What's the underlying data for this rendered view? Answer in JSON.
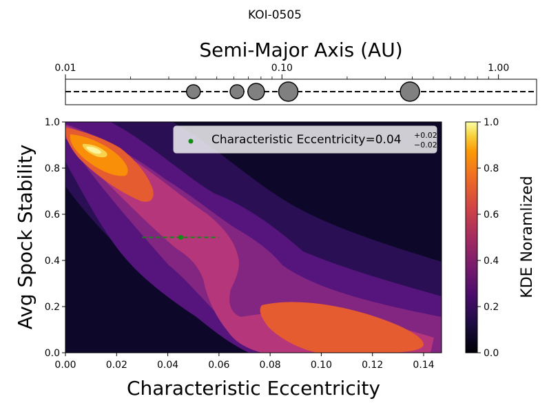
{
  "figure_title": "KOI-0505",
  "colors": {
    "background": "#0d0829",
    "legend_point": "#138a13",
    "planet_fill": "#808080",
    "levels": [
      "#0d0829",
      "#2b0f54",
      "#56147d",
      "#822681",
      "#b5367a",
      "#e55c30",
      "#f98e09",
      "#fbd24e",
      "#fcf5a0"
    ]
  },
  "chart_data": [
    {
      "type": "scatter",
      "role": "planet-axis",
      "title": "Semi-Major Axis (AU)",
      "xscale": "log",
      "xlim": [
        0.01,
        1.5
      ],
      "xticks": [
        0.01,
        0.1,
        1.0
      ],
      "xtick_labels": [
        "0.01",
        "0.10",
        "1.00"
      ],
      "planets": [
        {
          "a": 0.039,
          "size": "small"
        },
        {
          "a": 0.062,
          "size": "small"
        },
        {
          "a": 0.076,
          "size": "medium"
        },
        {
          "a": 0.107,
          "size": "large"
        },
        {
          "a": 0.39,
          "size": "large"
        }
      ]
    },
    {
      "type": "heatmap",
      "subtype": "filled-contour",
      "xlabel": "Characteristic Eccentricity",
      "ylabel": "Avg Spock Stability",
      "xlim": [
        0.0,
        0.147
      ],
      "ylim": [
        0.0,
        1.0
      ],
      "xticks": [
        "0.00",
        "0.02",
        "0.04",
        "0.06",
        "0.08",
        "0.10",
        "0.12",
        "0.14"
      ],
      "yticks": [
        "0.0",
        "0.2",
        "0.4",
        "0.6",
        "0.8",
        "1.0"
      ],
      "colorbar": {
        "label": "KDE Noramlized",
        "range": [
          0.0,
          1.0
        ],
        "ticks": [
          "0.0",
          "0.2",
          "0.4",
          "0.6",
          "0.8",
          "1.0"
        ]
      },
      "levels": [
        0.0,
        0.125,
        0.25,
        0.375,
        0.5,
        0.625,
        0.75,
        0.875,
        1.0
      ],
      "point": {
        "x": 0.045,
        "y": 0.5,
        "xerr_minus": 0.015,
        "xerr_plus": 0.015
      },
      "legend": {
        "label": "Characteristic Eccentricity=0.04",
        "sup": "+0.02",
        "sub": "−0.02",
        "location": "upper-right"
      }
    }
  ]
}
